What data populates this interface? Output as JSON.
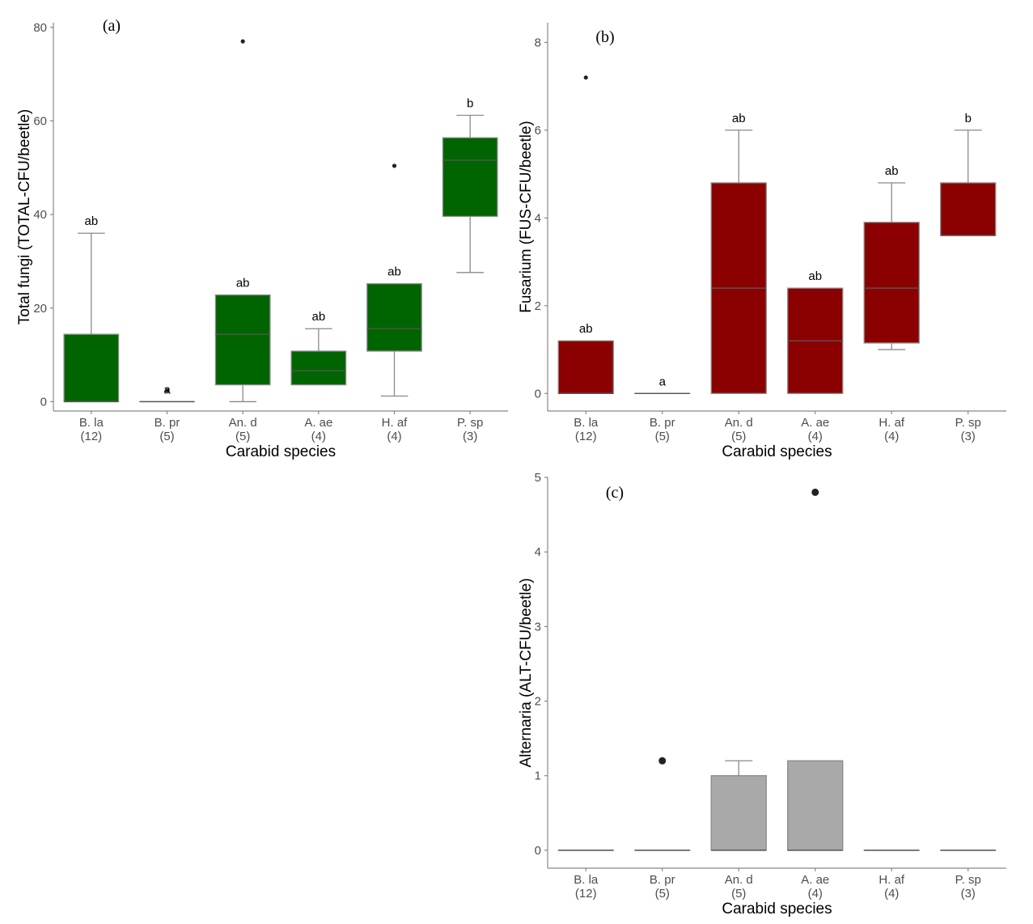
{
  "chart_data": [
    {
      "type": "box",
      "panel_label": "(a)",
      "xlabel": "Carabid species",
      "ylabel": "Total fungi (TOTAL-CFU/beetle)",
      "ylim": [
        -2,
        81
      ],
      "yticks": [
        0,
        20,
        40,
        60,
        80
      ],
      "fill_color": "#006400",
      "categories": [
        "B. la",
        "B. pr",
        "An. d",
        "A. ae",
        "H. af",
        "P. sp"
      ],
      "counts": [
        "(12)",
        "(5)",
        "(5)",
        "(4)",
        "(4)",
        "(3)"
      ],
      "boxes": [
        {
          "min": 0,
          "q1": 0,
          "median": 0,
          "q3": 14.4,
          "max": 36,
          "outliers": []
        },
        {
          "min": 0,
          "q1": 0,
          "median": 0,
          "q3": 0,
          "max": 0,
          "outliers": [
            2.4
          ]
        },
        {
          "min": 0,
          "q1": 3.6,
          "median": 14.4,
          "q3": 22.8,
          "max": 22.8,
          "outliers": [
            77
          ]
        },
        {
          "min": 3.6,
          "q1": 3.6,
          "median": 6.6,
          "q3": 10.8,
          "max": 15.6,
          "outliers": []
        },
        {
          "min": 1.2,
          "q1": 10.8,
          "median": 15.6,
          "q3": 25.2,
          "max": 25.2,
          "outliers": [
            50.4
          ]
        },
        {
          "min": 27.6,
          "q1": 39.6,
          "median": 51.6,
          "q3": 56.4,
          "max": 61.2,
          "outliers": []
        }
      ],
      "letters": [
        "ab",
        "a",
        "ab",
        "ab",
        "ab",
        "b"
      ]
    },
    {
      "type": "box",
      "panel_label": "(b)",
      "xlabel": "Carabid species",
      "ylabel": "Fusarium (FUS-CFU/beetle)",
      "ylim": [
        -0.4,
        8.45
      ],
      "yticks": [
        0,
        2,
        4,
        6,
        8
      ],
      "fill_color": "#8b0000",
      "categories": [
        "B. la",
        "B. pr",
        "An. d",
        "A. ae",
        "H. af",
        "P. sp"
      ],
      "counts": [
        "(12)",
        "(5)",
        "(5)",
        "(4)",
        "(4)",
        "(3)"
      ],
      "boxes": [
        {
          "min": 0,
          "q1": 0,
          "median": 0,
          "q3": 1.2,
          "max": 1.2,
          "outliers": [
            7.2
          ]
        },
        {
          "min": 0,
          "q1": 0,
          "median": 0,
          "q3": 0,
          "max": 0,
          "outliers": []
        },
        {
          "min": 0,
          "q1": 0,
          "median": 2.4,
          "q3": 4.8,
          "max": 6.0,
          "outliers": []
        },
        {
          "min": 0,
          "q1": 0,
          "median": 1.2,
          "q3": 2.4,
          "max": 2.4,
          "outliers": []
        },
        {
          "min": 1.0,
          "q1": 1.15,
          "median": 2.4,
          "q3": 3.9,
          "max": 4.8,
          "outliers": []
        },
        {
          "min": 3.6,
          "q1": 3.6,
          "median": 3.6,
          "q3": 4.8,
          "max": 6.0,
          "outliers": []
        }
      ],
      "letters": [
        "ab",
        "a",
        "ab",
        "ab",
        "ab",
        "b"
      ]
    },
    {
      "type": "box",
      "panel_label": "(c)",
      "xlabel": "Carabid species",
      "ylabel": "Alternaria (ALT-CFU/beetle)",
      "ylim": [
        -0.24,
        5.0
      ],
      "yticks": [
        0,
        1,
        2,
        3,
        4,
        5
      ],
      "fill_color": "#a9a9a9",
      "categories": [
        "B. la",
        "B. pr",
        "An. d",
        "A. ae",
        "H. af",
        "P. sp"
      ],
      "counts": [
        "(12)",
        "(5)",
        "(5)",
        "(4)",
        "(4)",
        "(3)"
      ],
      "boxes": [
        {
          "min": 0,
          "q1": 0,
          "median": 0,
          "q3": 0,
          "max": 0,
          "outliers": []
        },
        {
          "min": 0,
          "q1": 0,
          "median": 0,
          "q3": 0,
          "max": 0,
          "outliers": [
            1.2
          ]
        },
        {
          "min": 0,
          "q1": 0,
          "median": 0,
          "q3": 1.0,
          "max": 1.2,
          "outliers": []
        },
        {
          "min": 0,
          "q1": 0,
          "median": 0,
          "q3": 1.2,
          "max": 1.2,
          "outliers": [
            4.8
          ]
        },
        {
          "min": 0,
          "q1": 0,
          "median": 0,
          "q3": 0,
          "max": 0,
          "outliers": []
        },
        {
          "min": 0,
          "q1": 0,
          "median": 0,
          "q3": 0,
          "max": 0,
          "outliers": []
        }
      ],
      "letters": []
    }
  ]
}
